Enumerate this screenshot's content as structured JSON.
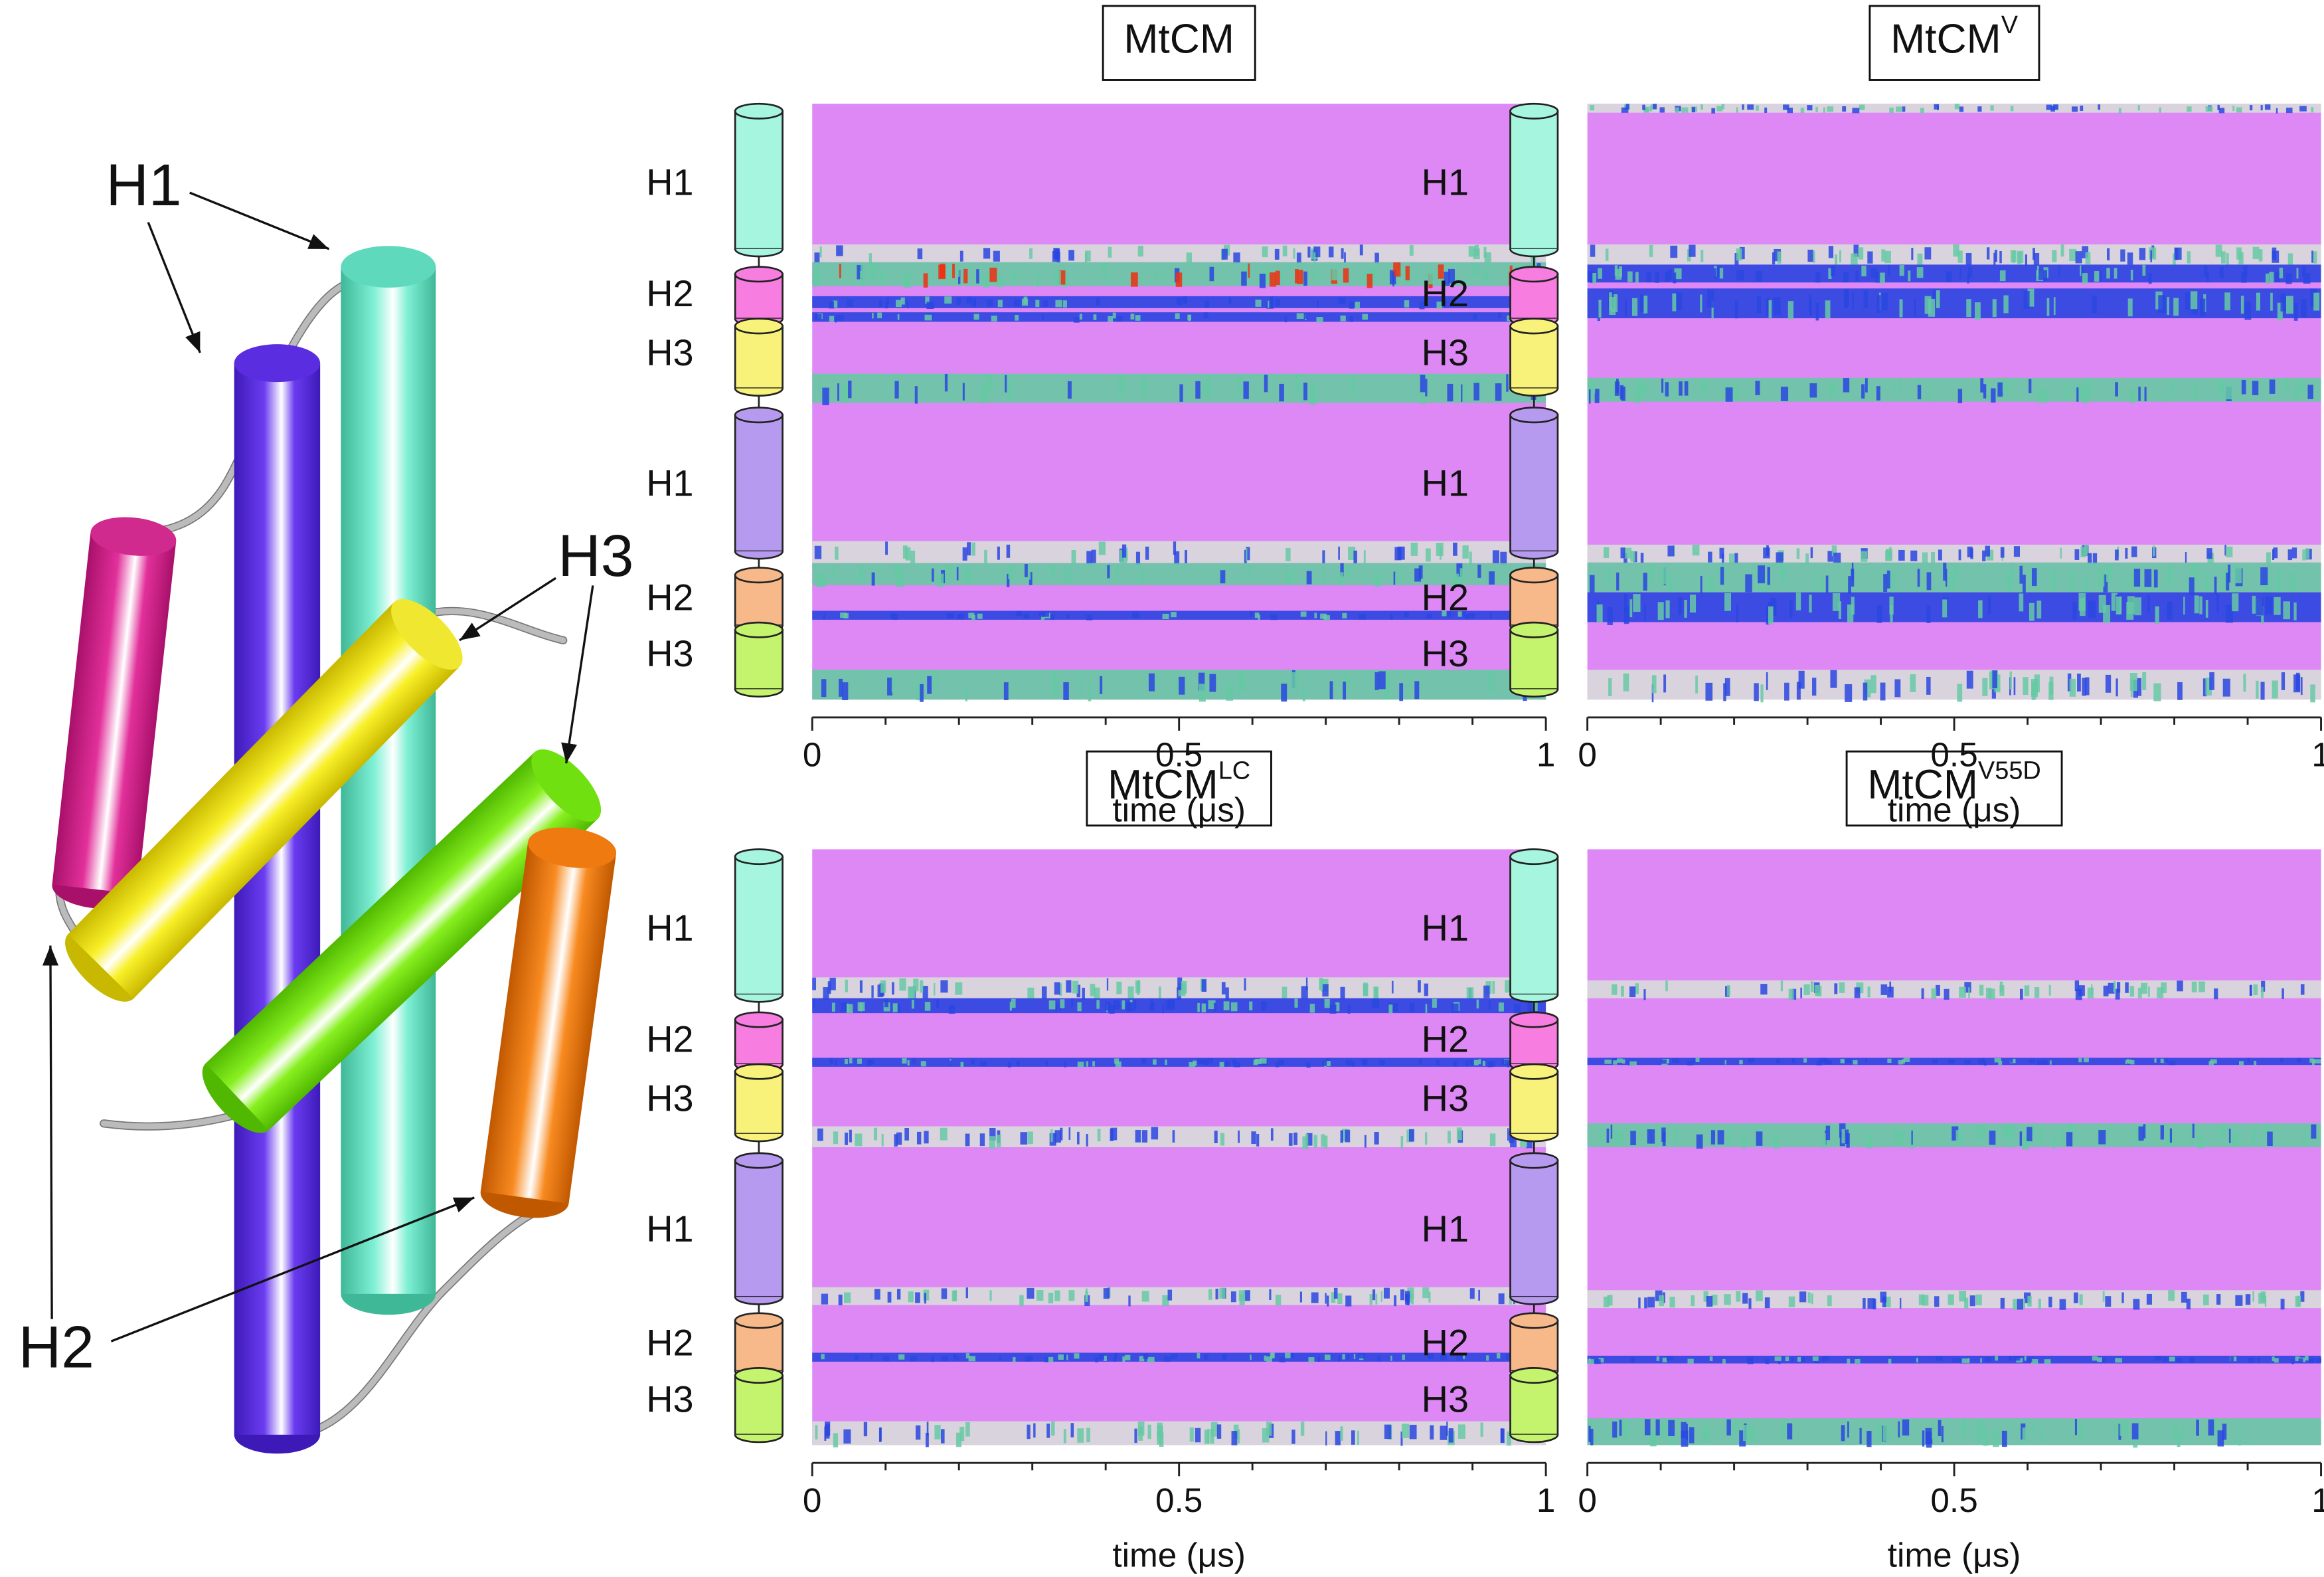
{
  "chart_data": [
    {
      "type": "heatmap",
      "title": "MtCM",
      "row_labels": [
        "H1",
        "H2",
        "H3",
        "H1",
        "H2",
        "H3"
      ],
      "xlim": [
        0,
        1
      ],
      "xticks": [
        0,
        0.5,
        1
      ],
      "xminor": [
        0.1,
        0.2,
        0.3,
        0.4,
        0.6,
        0.7,
        0.8,
        0.9
      ],
      "xlabel": "time (μs)"
    },
    {
      "type": "heatmap",
      "title": "MtCM",
      "title_sup": "V",
      "row_labels": [
        "H1",
        "H2",
        "H3",
        "H1",
        "H2",
        "H3"
      ],
      "xlim": [
        0,
        1
      ],
      "xticks": [
        0,
        0.5,
        1
      ],
      "xminor": [
        0.1,
        0.2,
        0.3,
        0.4,
        0.6,
        0.7,
        0.8,
        0.9
      ],
      "xlabel": "time (μs)"
    },
    {
      "type": "heatmap",
      "title": "MtCM",
      "title_sup": "LC",
      "row_labels": [
        "H1",
        "H2",
        "H3",
        "H1",
        "H2",
        "H3"
      ],
      "xlim": [
        0,
        1
      ],
      "xticks": [
        0,
        0.5,
        1
      ],
      "xminor": [
        0.1,
        0.2,
        0.3,
        0.4,
        0.6,
        0.7,
        0.8,
        0.9
      ],
      "xlabel": "time (μs)"
    },
    {
      "type": "heatmap",
      "title": "MtCM",
      "title_sup": "V55D",
      "row_labels": [
        "H1",
        "H2",
        "H3",
        "H1",
        "H2",
        "H3"
      ],
      "xlim": [
        0,
        1
      ],
      "xticks": [
        0,
        0.5,
        1
      ],
      "xminor": [
        0.1,
        0.2,
        0.3,
        0.4,
        0.6,
        0.7,
        0.8,
        0.9
      ],
      "xlabel": "time (μs)"
    }
  ],
  "structure_labels": [
    "H1",
    "H3",
    "H2"
  ]
}
